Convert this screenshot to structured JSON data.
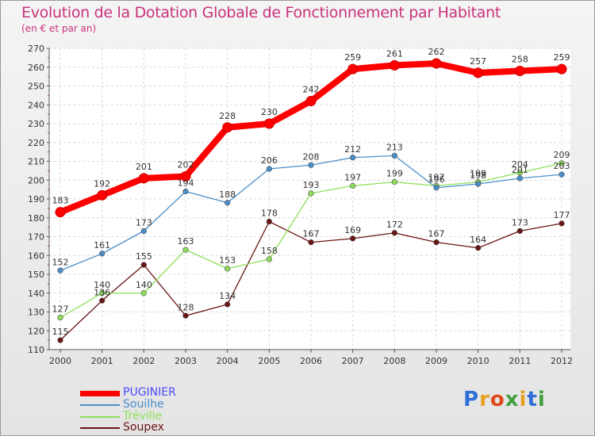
{
  "header": {
    "title": "Evolution de la Dotation Globale de Fonctionnement par Habitant",
    "subtitle": "(en € et par an)"
  },
  "logo": {
    "text": "Proxiti"
  },
  "colors": {
    "title": "#c8327a",
    "puginier": "#ff0000",
    "souilhe": "#4a8fc9",
    "treville": "#8ee05a",
    "soupex": "#6b1414",
    "legend_puginier_text": "#4a4aff"
  },
  "chart_data": {
    "type": "line",
    "title": "Evolution de la Dotation Globale de Fonctionnement par Habitant",
    "subtitle": "(en € et par an)",
    "xlabel": "",
    "ylabel": "",
    "x": [
      "2000",
      "2001",
      "2002",
      "2003",
      "2004",
      "2005",
      "2006",
      "2007",
      "2008",
      "2009",
      "2010",
      "2011",
      "2012"
    ],
    "ylim": [
      110,
      270
    ],
    "yticks": [
      110,
      120,
      130,
      140,
      150,
      160,
      170,
      180,
      190,
      200,
      210,
      220,
      230,
      240,
      250,
      260,
      270
    ],
    "grid": true,
    "legend_position": "bottom-left",
    "series": [
      {
        "name": "PUGINIER",
        "key": "puginier",
        "values": [
          183,
          192,
          201,
          202,
          228,
          230,
          242,
          259,
          261,
          262,
          257,
          258,
          259
        ]
      },
      {
        "name": "Souilhe",
        "key": "souilhe",
        "values": [
          152,
          161,
          173,
          194,
          188,
          206,
          208,
          212,
          213,
          196,
          198,
          201,
          203
        ]
      },
      {
        "name": "Tréville",
        "key": "treville",
        "values": [
          127,
          140,
          140,
          163,
          153,
          158,
          193,
          197,
          199,
          197,
          199,
          204,
          209
        ]
      },
      {
        "name": "Soupex",
        "key": "soupex",
        "values": [
          115,
          136,
          155,
          128,
          134,
          178,
          167,
          169,
          172,
          167,
          164,
          173,
          177
        ]
      }
    ]
  }
}
